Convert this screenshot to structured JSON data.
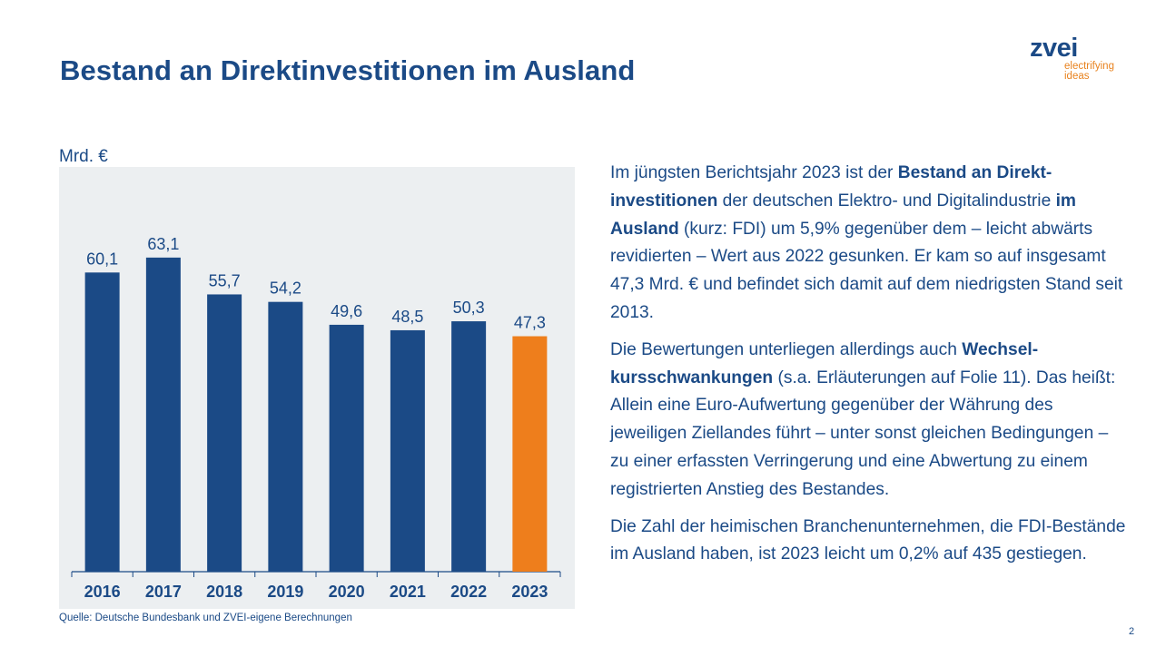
{
  "header": {
    "title": "Bestand an Direktinvestitionen im Ausland"
  },
  "logo": {
    "word": "zvei",
    "tagline_1": "electrifying",
    "tagline_2": "ideas"
  },
  "chart_data": {
    "type": "bar",
    "unit_label": "Mrd. €",
    "categories": [
      "2016",
      "2017",
      "2018",
      "2019",
      "2020",
      "2021",
      "2022",
      "2023"
    ],
    "values": [
      60.1,
      63.1,
      55.7,
      54.2,
      49.6,
      48.5,
      50.3,
      47.3
    ],
    "value_labels": [
      "60,1",
      "63,1",
      "55,7",
      "54,2",
      "49,6",
      "48,5",
      "50,3",
      "47,3"
    ],
    "ylim": [
      0,
      70
    ],
    "grid": false,
    "colors": {
      "bar": "#1b4a86",
      "highlight_bar": "#ee7e1c",
      "background": "#eceff1"
    },
    "highlight_category": "2023"
  },
  "source": "Quelle: Deutsche Bundesbank und ZVEI-eigene Berechnungen",
  "paragraphs": [
    [
      {
        "t": "Im jüngsten Berichtsjahr 2023 ist der ",
        "b": false
      },
      {
        "t": "Bestand an Direkt-investitionen",
        "b": true
      },
      {
        "t": " der deutschen Elektro- und Digitalindustrie ",
        "b": false
      },
      {
        "t": "im Ausland",
        "b": true
      },
      {
        "t": " (kurz: FDI) um 5,9% gegenüber dem – leicht abwärts revidierten – Wert aus 2022 gesunken. Er kam so auf insgesamt 47,3 Mrd. € und befindet sich damit auf dem niedrigsten Stand seit 2013.",
        "b": false
      }
    ],
    [
      {
        "t": "Die Bewertungen unterliegen allerdings auch ",
        "b": false
      },
      {
        "t": "Wechsel-kursschwankungen",
        "b": true
      },
      {
        "t": " (s.a. Erläuterungen auf Folie 11). Das heißt: Allein eine Euro-Aufwertung gegenüber der Währung des jeweiligen Ziellandes führt – unter sonst gleichen Bedingungen – zu einer erfassten Verringerung und eine Abwertung zu einem registrierten Anstieg des Bestandes.",
        "b": false
      }
    ],
    [
      {
        "t": "Die Zahl der heimischen Branchenunternehmen, die FDI-Bestände im Ausland haben, ist 2023 leicht um 0,2% auf 435 gestiegen.",
        "b": false
      }
    ]
  ],
  "page_number": "2"
}
